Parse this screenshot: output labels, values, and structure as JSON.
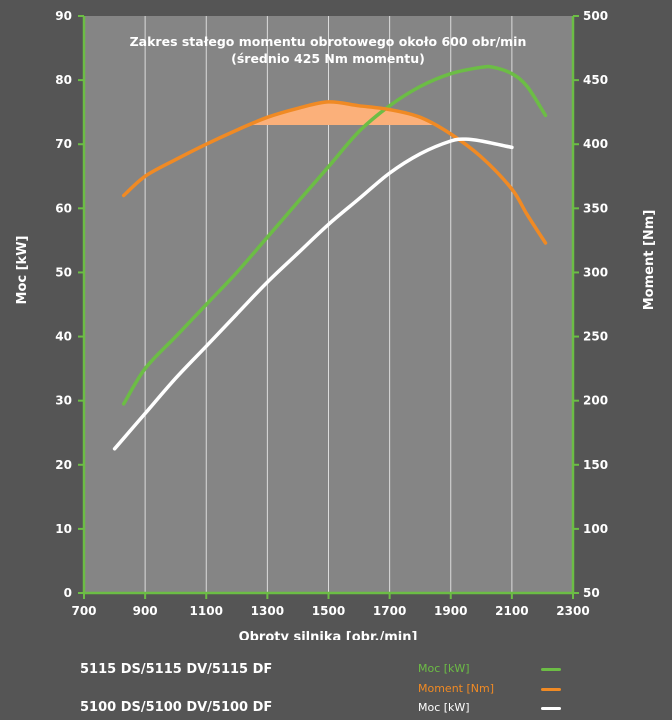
{
  "chart_data": {
    "type": "line",
    "annotation": [
      "Zakres stałego momentu obrotowego około 600 obr/min",
      "(średnio 425 Nm momentu)"
    ],
    "xlabel": "Obroty silnika [obr./min]",
    "ylabel_left": "Moc [kW]",
    "ylabel_right": "Moment [Nm]",
    "xlim": [
      700,
      2300
    ],
    "ylim_left": [
      0,
      90
    ],
    "ylim_right": [
      50,
      500
    ],
    "xticks": [
      "700",
      "900",
      "1100",
      "1300",
      "1500",
      "1700",
      "1900",
      "2100",
      "2300"
    ],
    "yticks_left": [
      "0",
      "10",
      "20",
      "30",
      "40",
      "50",
      "60",
      "70",
      "80",
      "90"
    ],
    "yticks_right": [
      "50",
      "100",
      "150",
      "200",
      "250",
      "300",
      "350",
      "400",
      "450",
      "500"
    ],
    "grid": true,
    "series": [
      {
        "name": "Moc [kW]",
        "axis": "left",
        "color": "#6cbd45",
        "x": [
          830,
          900,
          1000,
          1100,
          1200,
          1300,
          1400,
          1500,
          1600,
          1700,
          1800,
          1900,
          2000,
          2040,
          2100,
          2150,
          2210
        ],
        "y": [
          29.5,
          35,
          40,
          45,
          50,
          55.5,
          61,
          66.5,
          72,
          76,
          79,
          81,
          82,
          82,
          81,
          79,
          74.5
        ]
      },
      {
        "name": "Moment [Nm]",
        "axis": "right",
        "color": "#f08a24",
        "x": [
          830,
          900,
          1000,
          1100,
          1200,
          1300,
          1400,
          1500,
          1600,
          1700,
          1800,
          1900,
          2000,
          2100,
          2150,
          2210
        ],
        "y": [
          360,
          375,
          388,
          400,
          411,
          421,
          428,
          433,
          430,
          427,
          421,
          408,
          390,
          365,
          345,
          323
        ]
      },
      {
        "name": "Moc [kW]",
        "axis": "left",
        "color": "#ffffff",
        "x": [
          800,
          900,
          1000,
          1100,
          1200,
          1300,
          1400,
          1500,
          1600,
          1700,
          1800,
          1900,
          1950,
          2000,
          2100
        ],
        "y": [
          22.5,
          28,
          33.5,
          38.5,
          43.5,
          48.5,
          53,
          57.5,
          61.5,
          65.5,
          68.5,
          70.5,
          70.8,
          70.5,
          69.5
        ]
      }
    ],
    "shaded_region": {
      "series": "Moment [Nm]",
      "x_from": 1250,
      "x_to": 1850,
      "baseline": 415,
      "color": "#fbb07a"
    }
  },
  "legend": [
    {
      "label": "Moc [kW]",
      "color": "#6cbd45"
    },
    {
      "label": "Moment [Nm]",
      "color": "#f08a24"
    },
    {
      "label": "Moc [kW]",
      "color": "#ffffff"
    }
  ],
  "models": [
    "5115 DS/5115 DV/5115 DF",
    "5100 DS/5100 DV/5100 DF"
  ],
  "colors": {
    "background": "#555555",
    "plot_area": "#858585",
    "axis": "#6cbd45",
    "grid": "#dcdcdc"
  }
}
